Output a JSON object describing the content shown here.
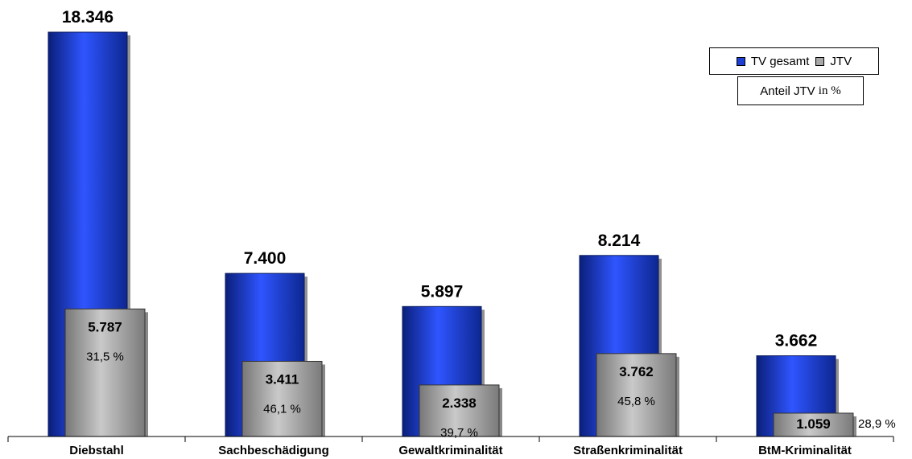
{
  "chart_data": {
    "type": "bar",
    "title": "",
    "xlabel": "",
    "ylabel": "",
    "ylim": [
      0,
      18346
    ],
    "grid": false,
    "legend_position": "top-right",
    "categories": [
      "Diebstahl",
      "Sachbeschädigung",
      "Gewaltkriminalität",
      "Straßenkriminalität",
      "BtM-Kriminalität"
    ],
    "series": [
      {
        "name": "TV gesamt",
        "color": "#1d3fd6",
        "values": [
          18346,
          7400,
          5897,
          8214,
          3662
        ],
        "labels": [
          "18.346",
          "7.400",
          "5.897",
          "8.214",
          "3.662"
        ]
      },
      {
        "name": "JTV",
        "color": "#a8a8a8",
        "values": [
          5787,
          3411,
          2338,
          3762,
          1059
        ],
        "labels": [
          "5.787",
          "3.411",
          "2.338",
          "3.762",
          "1.059"
        ]
      }
    ],
    "percentages": [
      "31,5 %",
      "46,1 %",
      "39,7 %",
      "45,8 %",
      "28,9 %"
    ],
    "legend_note": {
      "prefix": "Anteil JTV",
      "suffix": "in %"
    }
  }
}
